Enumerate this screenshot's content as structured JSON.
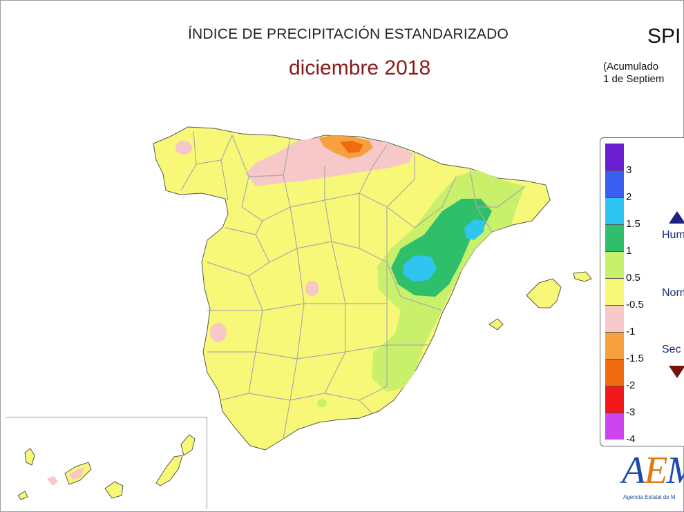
{
  "title": "ÍNDICE DE PRECIPITACIÓN ESTANDARIZADO",
  "subtitle": "diciembre 2018",
  "index_label": "SPI",
  "accumulation_line1": "(Acumulado",
  "accumulation_line2": "1 de Septiem",
  "legend": {
    "ticks": [
      "3",
      "2",
      "1.5",
      "1",
      "0.5",
      "-0.5",
      "-1",
      "-1.5",
      "-2",
      "-3",
      "-4"
    ],
    "colors": [
      "#6a1fd0",
      "#3a5ef0",
      "#2ec6f0",
      "#2fbf6a",
      "#c8f06a",
      "#f8f878",
      "#f6c8c8",
      "#f7a040",
      "#f06a10",
      "#f01818",
      "#cc44ee"
    ],
    "category_wet": "Hum",
    "category_normal": "Norm",
    "category_dry": "Sec"
  },
  "logo": {
    "text_a": "A",
    "text_e": "E",
    "text_m": "M",
    "caption": "Agencia Estatal de M"
  },
  "map_colors": {
    "land": "#f8f878",
    "border": "#aaaaaa",
    "coast": "#555555",
    "pink": "#f6c8c8",
    "light_green": "#c8f06a",
    "green": "#2fbf6a",
    "cyan": "#2ec6f0",
    "orange": "#f7a040",
    "dark_orange": "#f06a10"
  }
}
